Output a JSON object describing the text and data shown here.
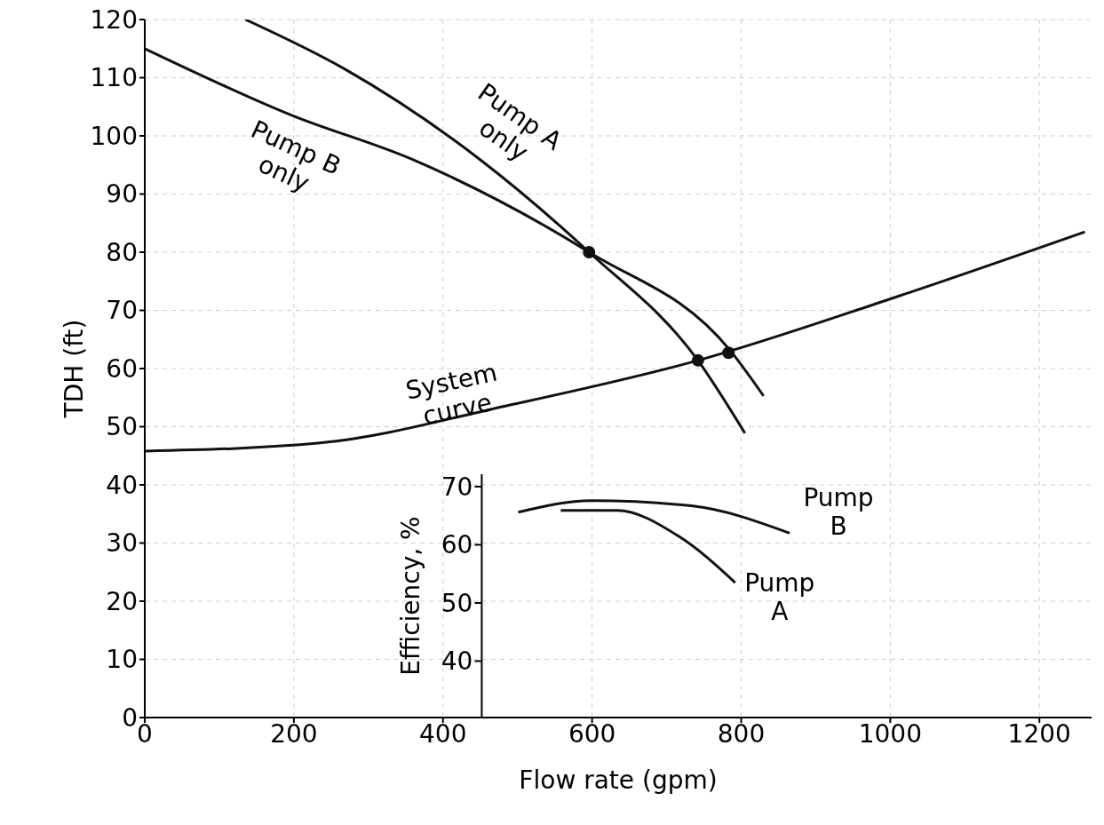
{
  "chart_data": {
    "type": "line",
    "xlabel": "Flow rate (gpm)",
    "ylabel": "TDH (ft)",
    "y2label": "Efficiency, %",
    "xlim": [
      0,
      1270
    ],
    "ylim": [
      0,
      120
    ],
    "y2lim": [
      30.3,
      150.3
    ],
    "xticks": [
      0,
      200,
      400,
      600,
      800,
      1000,
      1200
    ],
    "yticks": [
      0,
      10,
      20,
      30,
      40,
      50,
      60,
      70,
      80,
      90,
      100,
      110,
      120
    ],
    "y2ticks": [
      40,
      50,
      60,
      70
    ],
    "grid": true,
    "marker": "none",
    "series": [
      {
        "name": "Pump A only",
        "color": "#111111",
        "x": [
          135,
          268,
          449,
          596,
          742,
          805
        ],
        "values": [
          120,
          111.5,
          96,
          80,
          61.4,
          48.9
        ]
      },
      {
        "name": "Pump B only",
        "color": "#111111",
        "x": [
          0,
          198,
          358,
          596,
          786,
          830
        ],
        "values": [
          115,
          103.5,
          96,
          80,
          63,
          55.3
        ]
      },
      {
        "name": "System curve",
        "color": "#111111",
        "x": [
          0,
          235,
          485,
          742,
          996,
          1261
        ],
        "values": [
          45.8,
          47.2,
          53.6,
          61.4,
          71.8,
          83.5
        ]
      },
      {
        "type": "scatter",
        "marker": "circle",
        "color": "#111111",
        "x": [
          596,
          742,
          783
        ],
        "values": [
          80,
          61.4,
          62.7
        ]
      },
      {
        "name": "Pump B",
        "axis": "y2",
        "color": "#111111",
        "x": [
          501,
          600,
          733,
          865
        ],
        "values": [
          65.6,
          67.6,
          66.7,
          62
        ]
      },
      {
        "name": "Pump A",
        "axis": "y2",
        "color": "#111111",
        "x": [
          558,
          633,
          717,
          792
        ],
        "values": [
          65.9,
          65.9,
          61.4,
          53.5
        ]
      }
    ]
  }
}
